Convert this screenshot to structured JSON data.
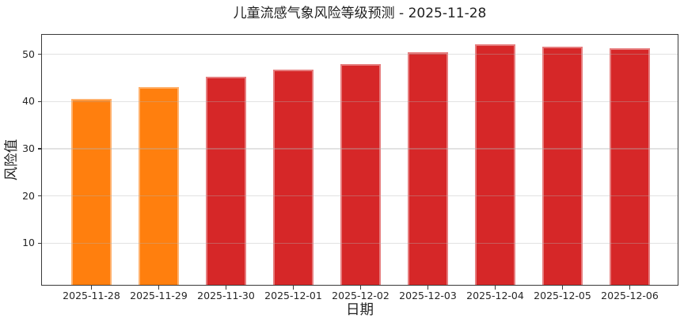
{
  "chart_data": {
    "type": "bar",
    "title": "儿童流感气象风险等级预测 - 2025-11-28",
    "xlabel": "日期",
    "ylabel": "风险值",
    "categories": [
      "2025-11-28",
      "2025-11-29",
      "2025-11-30",
      "2025-12-01",
      "2025-12-02",
      "2025-12-03",
      "2025-12-04",
      "2025-12-05",
      "2025-12-06"
    ],
    "values": [
      40.5,
      43.0,
      45.2,
      46.7,
      48.0,
      50.5,
      52.1,
      51.7,
      51.2
    ],
    "bar_colors": [
      "#FF7F0E",
      "#FF7F0E",
      "#D62728",
      "#D62728",
      "#D62728",
      "#D62728",
      "#D62728",
      "#D62728",
      "#D62728"
    ],
    "colors": {
      "orange_low_risk": "#FF7F0E",
      "red_high_risk": "#D62728",
      "spine": "#3a3a3a",
      "text": "#262626"
    },
    "yticks": [
      10,
      20,
      30,
      40,
      50
    ],
    "ylim": [
      1.0,
      54.3
    ],
    "grid": "horizontal gridlines at yticks, light gray, drawn over bars",
    "legend": "none"
  }
}
